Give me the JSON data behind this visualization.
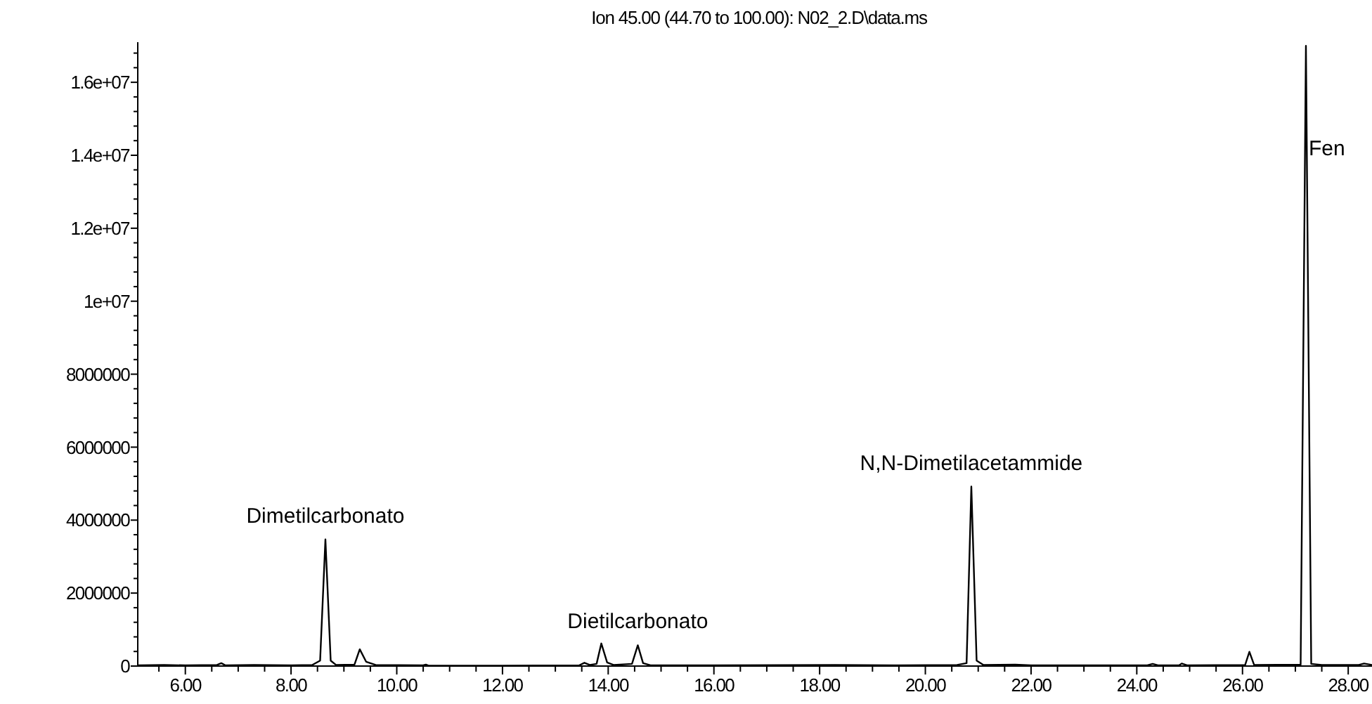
{
  "chart_data": {
    "type": "line",
    "title": "Ion 45.00 (44.70 to 100.00): N02_2.D\\data.ms",
    "x": [
      5.1,
      5.6,
      6.0,
      6.6,
      6.68,
      6.76,
      7.3,
      8.0,
      8.4,
      8.55,
      8.65,
      8.75,
      8.85,
      9.2,
      9.3,
      9.42,
      9.6,
      10.5,
      10.55,
      10.6,
      12.0,
      13.45,
      13.55,
      13.65,
      13.78,
      13.87,
      13.98,
      14.1,
      14.45,
      14.56,
      14.66,
      14.8,
      16.0,
      18.3,
      19.5,
      20.6,
      20.78,
      20.87,
      20.97,
      21.1,
      21.7,
      22.0,
      24.2,
      24.3,
      24.4,
      24.8,
      24.85,
      24.95,
      26.05,
      26.13,
      26.22,
      27.1,
      27.2,
      27.3,
      27.5,
      28.2,
      28.3,
      28.45
    ],
    "series": [
      {
        "color": "#000000",
        "values": [
          20000,
          30000,
          20000,
          30000,
          80000,
          20000,
          30000,
          20000,
          30000,
          150000,
          3470000,
          150000,
          30000,
          40000,
          460000,
          120000,
          30000,
          20000,
          40000,
          10000,
          10000,
          20000,
          90000,
          30000,
          60000,
          620000,
          100000,
          30000,
          60000,
          570000,
          80000,
          20000,
          20000,
          30000,
          20000,
          30000,
          80000,
          4920000,
          150000,
          30000,
          40000,
          20000,
          20000,
          60000,
          20000,
          20000,
          70000,
          20000,
          30000,
          390000,
          30000,
          40000,
          17000000,
          60000,
          30000,
          30000,
          70000,
          30000
        ]
      }
    ],
    "xlim": [
      5.1,
      28.45
    ],
    "ylim": [
      0,
      17100000
    ],
    "xticks": [
      {
        "value": 5.5,
        "label": null
      },
      {
        "value": 6,
        "label": "6.00"
      },
      {
        "value": 6.5,
        "label": null
      },
      {
        "value": 7,
        "label": null
      },
      {
        "value": 7.5,
        "label": null
      },
      {
        "value": 8,
        "label": "8.00"
      },
      {
        "value": 8.5,
        "label": null
      },
      {
        "value": 9,
        "label": null
      },
      {
        "value": 9.5,
        "label": null
      },
      {
        "value": 10,
        "label": "10.00"
      },
      {
        "value": 10.5,
        "label": null
      },
      {
        "value": 11,
        "label": null
      },
      {
        "value": 11.5,
        "label": null
      },
      {
        "value": 12,
        "label": "12.00"
      },
      {
        "value": 12.5,
        "label": null
      },
      {
        "value": 13,
        "label": null
      },
      {
        "value": 13.5,
        "label": null
      },
      {
        "value": 14,
        "label": "14.00"
      },
      {
        "value": 14.5,
        "label": null
      },
      {
        "value": 15,
        "label": null
      },
      {
        "value": 15.5,
        "label": null
      },
      {
        "value": 16,
        "label": "16.00"
      },
      {
        "value": 16.5,
        "label": null
      },
      {
        "value": 17,
        "label": null
      },
      {
        "value": 17.5,
        "label": null
      },
      {
        "value": 18,
        "label": "18.00"
      },
      {
        "value": 18.5,
        "label": null
      },
      {
        "value": 19,
        "label": null
      },
      {
        "value": 19.5,
        "label": null
      },
      {
        "value": 20,
        "label": "20.00"
      },
      {
        "value": 20.5,
        "label": null
      },
      {
        "value": 21,
        "label": null
      },
      {
        "value": 21.5,
        "label": null
      },
      {
        "value": 22,
        "label": "22.00"
      },
      {
        "value": 22.5,
        "label": null
      },
      {
        "value": 23,
        "label": null
      },
      {
        "value": 23.5,
        "label": null
      },
      {
        "value": 24,
        "label": "24.00"
      },
      {
        "value": 24.5,
        "label": null
      },
      {
        "value": 25,
        "label": null
      },
      {
        "value": 25.5,
        "label": null
      },
      {
        "value": 26,
        "label": "26.00"
      },
      {
        "value": 26.5,
        "label": null
      },
      {
        "value": 27,
        "label": null
      },
      {
        "value": 27.5,
        "label": null
      },
      {
        "value": 28,
        "label": "28.00"
      }
    ],
    "yticks": [
      0,
      {
        "value": 400000,
        "label": null
      },
      {
        "value": 800000,
        "label": null
      },
      {
        "value": 1200000,
        "label": null
      },
      {
        "value": 1600000,
        "label": null
      },
      2000000,
      {
        "value": 2400000,
        "label": null
      },
      {
        "value": 2800000,
        "label": null
      },
      {
        "value": 3200000,
        "label": null
      },
      {
        "value": 3600000,
        "label": null
      },
      4000000,
      {
        "value": 4400000,
        "label": null
      },
      {
        "value": 4800000,
        "label": null
      },
      {
        "value": 5200000,
        "label": null
      },
      {
        "value": 5600000,
        "label": null
      },
      6000000,
      {
        "value": 6400000,
        "label": null
      },
      {
        "value": 6800000,
        "label": null
      },
      {
        "value": 7200000,
        "label": null
      },
      {
        "value": 7600000,
        "label": null
      },
      8000000,
      {
        "value": 8400000,
        "label": null
      },
      {
        "value": 8800000,
        "label": null
      },
      {
        "value": 9200000,
        "label": null
      },
      {
        "value": 9600000,
        "label": null
      },
      {
        "value": 10000000,
        "label": "1e+07"
      },
      {
        "value": 10400000,
        "label": null
      },
      {
        "value": 10800000,
        "label": null
      },
      {
        "value": 11200000,
        "label": null
      },
      {
        "value": 11600000,
        "label": null
      },
      {
        "value": 12000000,
        "label": "1.2e+07"
      },
      {
        "value": 12400000,
        "label": null
      },
      {
        "value": 12800000,
        "label": null
      },
      {
        "value": 13200000,
        "label": null
      },
      {
        "value": 13600000,
        "label": null
      },
      {
        "value": 14000000,
        "label": "1.4e+07"
      },
      {
        "value": 14400000,
        "label": null
      },
      {
        "value": 14800000,
        "label": null
      },
      {
        "value": 15200000,
        "label": null
      },
      {
        "value": 15600000,
        "label": null
      },
      {
        "value": 16000000,
        "label": "1.6e+07"
      },
      {
        "value": 16400000,
        "label": null
      },
      {
        "value": 16800000,
        "label": null
      }
    ],
    "annotations": [
      {
        "text": "Dimetilcarbonato",
        "x": 8.65,
        "y": 3470000
      },
      {
        "text": "Dietilcarbonato",
        "x": 14.56,
        "y": 570000
      },
      {
        "text": "N,N-Dimetilacetammide",
        "x": 20.87,
        "y": 4920000
      },
      {
        "text": "Fen",
        "x": 27.2,
        "y": 14000000
      }
    ],
    "grid": false,
    "marker": "none",
    "line_style": "solid"
  }
}
